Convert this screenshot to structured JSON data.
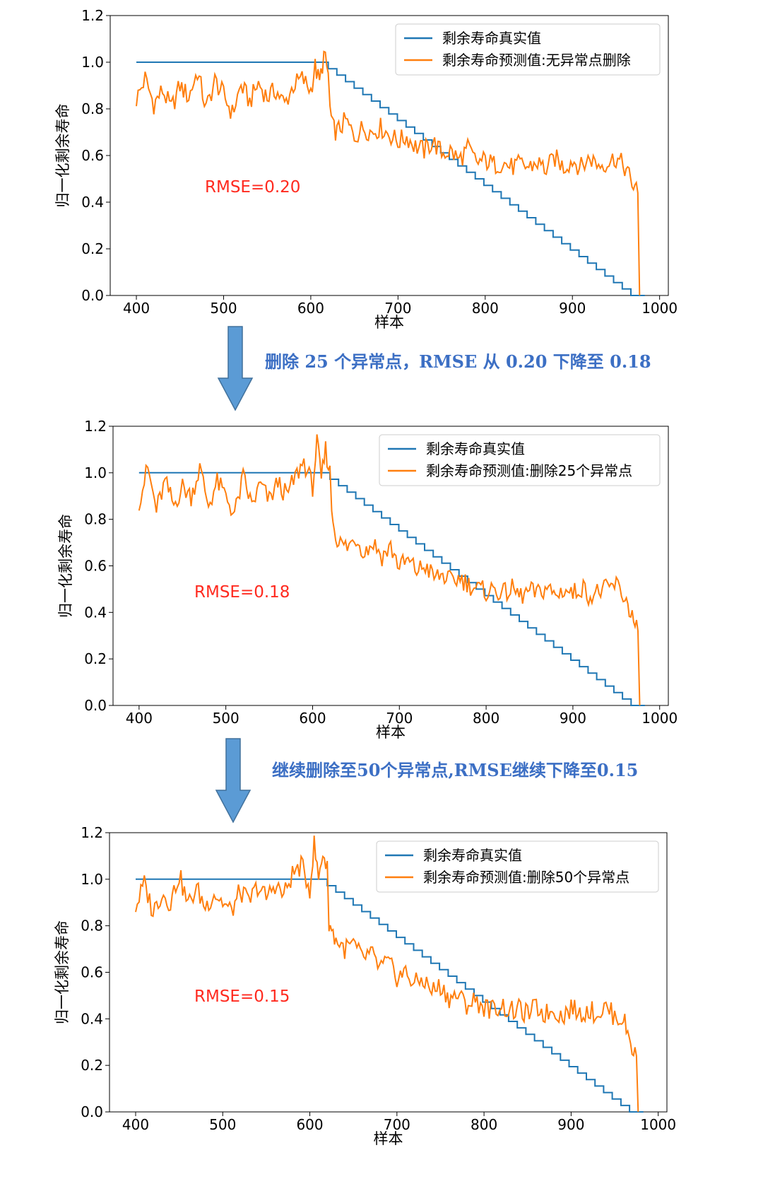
{
  "colors": {
    "true_line": "#1f77b4",
    "pred_line": "#ff7f0e",
    "rmse": "#ff2a1f",
    "caption": "#3c6fc4",
    "arrow_fill": "#5b9bd5",
    "arrow_stroke": "#41719c"
  },
  "captions": [
    "删除 25 个异常点，RMSE 从 0.20 下降至 0.18",
    "继续删除至50个异常点,RMSE继续下降至0.15"
  ],
  "chart_data": [
    {
      "type": "line",
      "xlabel": "样本",
      "ylabel": "归一化剩余寿命",
      "xlim": [
        370,
        1010
      ],
      "ylim": [
        0,
        1.2
      ],
      "xticks": [
        "400",
        "500",
        "600",
        "700",
        "800",
        "900",
        "1000"
      ],
      "yticks": [
        "0.0",
        "0.2",
        "0.4",
        "0.6",
        "0.8",
        "1.0",
        "1.2"
      ],
      "legend_position": "top-right",
      "annotation": "RMSE=0.20",
      "series": [
        {
          "name": "剩余寿命真实值",
          "color": "#1f77b4",
          "x": [
            400,
            620,
            620,
            977,
            977,
            983
          ],
          "y": [
            1.0,
            1.0,
            1.0,
            0.0,
            0.0,
            0.0
          ]
        },
        {
          "name": "剩余寿命预测值:无异常点删除",
          "color": "#ff7f0e",
          "x": [
            400,
            410,
            420,
            430,
            440,
            450,
            460,
            470,
            480,
            490,
            500,
            510,
            520,
            530,
            540,
            550,
            560,
            570,
            580,
            590,
            600,
            605,
            610,
            615,
            620,
            622,
            625,
            630,
            640,
            650,
            660,
            670,
            680,
            690,
            700,
            710,
            720,
            730,
            740,
            750,
            760,
            770,
            780,
            790,
            800,
            810,
            820,
            830,
            840,
            850,
            860,
            870,
            880,
            890,
            900,
            910,
            920,
            930,
            940,
            950,
            960,
            965,
            970,
            975,
            977
          ],
          "y": [
            0.84,
            0.93,
            0.82,
            0.88,
            0.8,
            0.9,
            0.85,
            0.96,
            0.8,
            0.92,
            0.86,
            0.78,
            0.9,
            0.83,
            0.91,
            0.85,
            0.88,
            0.82,
            0.9,
            0.93,
            0.88,
            0.98,
            0.91,
            1.03,
            0.95,
            0.8,
            0.72,
            0.7,
            0.75,
            0.68,
            0.72,
            0.7,
            0.72,
            0.69,
            0.66,
            0.68,
            0.64,
            0.62,
            0.66,
            0.61,
            0.62,
            0.58,
            0.63,
            0.57,
            0.58,
            0.56,
            0.57,
            0.55,
            0.56,
            0.55,
            0.57,
            0.54,
            0.59,
            0.55,
            0.58,
            0.55,
            0.59,
            0.56,
            0.57,
            0.59,
            0.55,
            0.51,
            0.47,
            0.44,
            0.0
          ]
        }
      ]
    },
    {
      "type": "line",
      "xlabel": "样本",
      "ylabel": "归一化剩余寿命",
      "xlim": [
        370,
        1010
      ],
      "ylim": [
        0,
        1.2
      ],
      "xticks": [
        "400",
        "500",
        "600",
        "700",
        "800",
        "900",
        "1000"
      ],
      "yticks": [
        "0.0",
        "0.2",
        "0.4",
        "0.6",
        "0.8",
        "1.0",
        "1.2"
      ],
      "legend_position": "top-right",
      "annotation": "RMSE=0.18",
      "series": [
        {
          "name": "剩余寿命真实值",
          "color": "#1f77b4",
          "x": [
            400,
            620,
            620,
            977,
            977,
            983
          ],
          "y": [
            1.0,
            1.0,
            1.0,
            0.0,
            0.0,
            0.0
          ]
        },
        {
          "name": "剩余寿命预测值:删除25个异常点",
          "color": "#ff7f0e",
          "x": [
            400,
            410,
            420,
            430,
            440,
            450,
            460,
            470,
            480,
            490,
            500,
            510,
            520,
            530,
            540,
            550,
            560,
            570,
            580,
            590,
            600,
            605,
            610,
            615,
            620,
            622,
            625,
            630,
            640,
            650,
            660,
            670,
            680,
            690,
            700,
            710,
            720,
            730,
            740,
            750,
            760,
            770,
            780,
            790,
            800,
            810,
            820,
            830,
            840,
            850,
            860,
            870,
            880,
            890,
            900,
            910,
            920,
            930,
            940,
            950,
            960,
            965,
            970,
            975,
            977
          ],
          "y": [
            0.88,
            1.02,
            0.84,
            0.96,
            0.86,
            0.94,
            0.9,
            1.02,
            0.86,
            0.96,
            0.9,
            0.82,
            0.98,
            0.86,
            0.95,
            0.88,
            0.96,
            0.9,
            0.98,
            1.05,
            0.94,
            1.13,
            0.97,
            1.1,
            1.0,
            0.85,
            0.76,
            0.7,
            0.68,
            0.72,
            0.66,
            0.7,
            0.64,
            0.68,
            0.6,
            0.62,
            0.58,
            0.6,
            0.55,
            0.56,
            0.53,
            0.55,
            0.52,
            0.5,
            0.49,
            0.5,
            0.48,
            0.5,
            0.47,
            0.49,
            0.48,
            0.51,
            0.47,
            0.5,
            0.48,
            0.51,
            0.47,
            0.49,
            0.5,
            0.52,
            0.46,
            0.42,
            0.36,
            0.32,
            0.0
          ]
        }
      ]
    },
    {
      "type": "line",
      "xlabel": "样本",
      "ylabel": "归一化剩余寿命",
      "xlim": [
        370,
        1010
      ],
      "ylim": [
        0,
        1.2
      ],
      "xticks": [
        "400",
        "500",
        "600",
        "700",
        "800",
        "900",
        "1000"
      ],
      "yticks": [
        "0.0",
        "0.2",
        "0.4",
        "0.6",
        "0.8",
        "1.0",
        "1.2"
      ],
      "legend_position": "top-right",
      "annotation": "RMSE=0.15",
      "series": [
        {
          "name": "剩余寿命真实值",
          "color": "#1f77b4",
          "x": [
            400,
            620,
            620,
            977,
            977,
            983
          ],
          "y": [
            1.0,
            1.0,
            1.0,
            0.0,
            0.0,
            0.0
          ]
        },
        {
          "name": "剩余寿命预测值:删除50个异常点",
          "color": "#ff7f0e",
          "x": [
            400,
            410,
            420,
            430,
            440,
            450,
            460,
            470,
            480,
            490,
            500,
            510,
            520,
            530,
            540,
            550,
            560,
            570,
            580,
            590,
            600,
            605,
            610,
            615,
            620,
            622,
            625,
            630,
            640,
            650,
            660,
            670,
            680,
            690,
            700,
            710,
            720,
            730,
            740,
            750,
            760,
            770,
            780,
            790,
            800,
            810,
            820,
            830,
            840,
            850,
            860,
            870,
            880,
            890,
            900,
            910,
            920,
            930,
            940,
            950,
            960,
            965,
            970,
            975,
            977
          ],
          "y": [
            0.88,
            0.98,
            0.86,
            0.94,
            0.9,
            1.02,
            0.89,
            0.96,
            0.88,
            0.94,
            0.9,
            0.86,
            0.95,
            0.9,
            0.97,
            0.92,
            0.98,
            0.93,
            1.02,
            1.06,
            0.96,
            1.15,
            1.0,
            1.12,
            1.04,
            0.82,
            0.78,
            0.74,
            0.7,
            0.72,
            0.66,
            0.68,
            0.62,
            0.64,
            0.58,
            0.6,
            0.55,
            0.57,
            0.52,
            0.54,
            0.49,
            0.5,
            0.46,
            0.48,
            0.45,
            0.44,
            0.46,
            0.43,
            0.44,
            0.42,
            0.45,
            0.42,
            0.44,
            0.41,
            0.45,
            0.42,
            0.44,
            0.42,
            0.45,
            0.41,
            0.4,
            0.34,
            0.28,
            0.24,
            0.0
          ]
        }
      ]
    }
  ]
}
